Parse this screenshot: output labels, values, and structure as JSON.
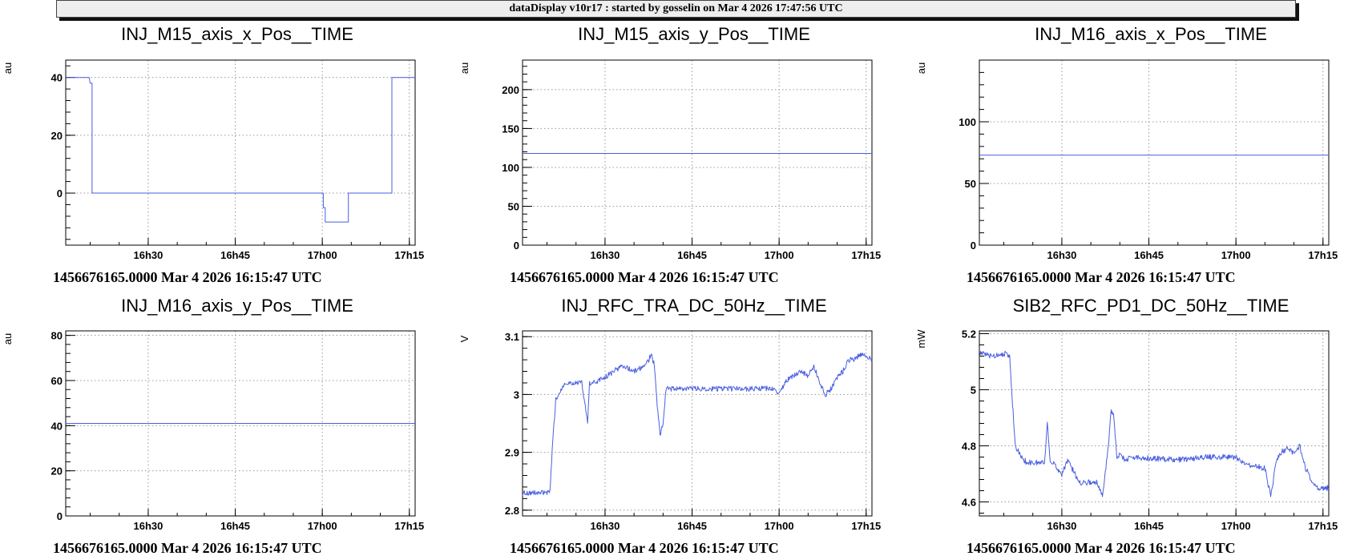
{
  "header": {
    "title": "dataDisplay v10r17 : started by gosselin on Mar  4 2026 17:47:56 UTC"
  },
  "chart_data": [
    {
      "type": "line",
      "title": "INJ_M15_axis_x_Pos__TIME",
      "ylabel": "au",
      "timestamp": "1456676165.0000 Mar 4 2026 16:15:47 UTC",
      "xlim": [
        "16:15:47",
        "17:16:00"
      ],
      "x_ticks": [
        "16h30",
        "16h45",
        "17h00",
        "17h15"
      ],
      "ylim": [
        -18,
        46
      ],
      "y_ticks": [
        0,
        20,
        40
      ],
      "y_labels": [
        "0",
        "20",
        "40"
      ],
      "grid": true,
      "series": [
        {
          "color": "#4a5fe0",
          "x": [
            "16:15:47",
            "16:19:50",
            "16:20:00",
            "16:20:20",
            "16:20:20",
            "17:00:10",
            "17:00:10",
            "17:00:30",
            "17:00:30",
            "17:04:30",
            "17:04:30",
            "17:12:00",
            "17:12:00",
            "17:16:00"
          ],
          "values": [
            40,
            40,
            38,
            38,
            0,
            0,
            -5,
            -5,
            -10,
            -10,
            0,
            0,
            40,
            40
          ]
        }
      ]
    },
    {
      "type": "line",
      "title": "INJ_M15_axis_y_Pos__TIME",
      "ylabel": "au",
      "timestamp": "1456676165.0000 Mar 4 2026 16:15:47 UTC",
      "xlim": [
        "16:15:47",
        "17:16:00"
      ],
      "x_ticks": [
        "16h30",
        "16h45",
        "17h00",
        "17h15"
      ],
      "ylim": [
        0,
        238
      ],
      "y_ticks": [
        0,
        50,
        100,
        150,
        200
      ],
      "y_labels": [
        "0",
        "50",
        "100",
        "150",
        "200"
      ],
      "grid": true,
      "series": [
        {
          "color": "#4a5fe0",
          "x": [
            "16:15:47",
            "17:16:00"
          ],
          "values": [
            118,
            118
          ]
        }
      ]
    },
    {
      "type": "line",
      "title": "INJ_M16_axis_x_Pos__TIME",
      "ylabel": "au",
      "timestamp": "1456676165.0000 Mar 4 2026 16:15:47 UTC",
      "xlim": [
        "16:15:47",
        "17:16:00"
      ],
      "x_ticks": [
        "16h30",
        "16h45",
        "17h00",
        "17h15"
      ],
      "ylim": [
        0,
        150
      ],
      "y_ticks": [
        0,
        50,
        100
      ],
      "y_labels": [
        "0",
        "50",
        "100"
      ],
      "grid": true,
      "series": [
        {
          "color": "#4a5fe0",
          "x": [
            "16:15:47",
            "17:16:00"
          ],
          "values": [
            73,
            73
          ]
        }
      ]
    },
    {
      "type": "line",
      "title": "INJ_M16_axis_y_Pos__TIME",
      "ylabel": "au",
      "timestamp": "1456676165.0000 Mar 4 2026 16:15:47 UTC",
      "xlim": [
        "16:15:47",
        "17:16:00"
      ],
      "x_ticks": [
        "16h30",
        "16h45",
        "17h00",
        "17h15"
      ],
      "ylim": [
        0,
        82
      ],
      "y_ticks": [
        0,
        20,
        40,
        60,
        80
      ],
      "y_labels": [
        "0",
        "20",
        "40",
        "60",
        "80"
      ],
      "grid": true,
      "series": [
        {
          "color": "#4a5fe0",
          "x": [
            "16:15:47",
            "17:16:00"
          ],
          "values": [
            41,
            41
          ]
        }
      ]
    },
    {
      "type": "line",
      "title": "INJ_RFC_TRA_DC_50Hz__TIME",
      "ylabel": "V",
      "timestamp": "1456676165.0000 Mar 4 2026 16:15:47 UTC",
      "xlim": [
        "16:15:47",
        "17:16:00"
      ],
      "x_ticks": [
        "16h30",
        "16h45",
        "17h00",
        "17h15"
      ],
      "ylim": [
        2.79,
        3.11
      ],
      "y_ticks": [
        2.8,
        2.9,
        3.0,
        3.1
      ],
      "y_labels": [
        "2.8",
        "2.9",
        "3",
        "3.1"
      ],
      "grid": true,
      "noise": 0.0045,
      "series": [
        {
          "color": "#4a5fe0",
          "x": [
            "16:15:47",
            "16:20:00",
            "16:20:30",
            "16:21:00",
            "16:21:30",
            "16:23:00",
            "16:26:00",
            "16:27:00",
            "16:27:20",
            "16:28:00",
            "16:30:00",
            "16:33:00",
            "16:35:00",
            "16:37:00",
            "16:38:00",
            "16:38:30",
            "16:39:00",
            "16:39:30",
            "16:40:00",
            "16:40:30",
            "16:41:00",
            "16:42:00",
            "16:50:00",
            "16:55:00",
            "16:59:00",
            "17:00:00",
            "17:01:00",
            "17:02:00",
            "17:04:00",
            "17:05:00",
            "17:06:00",
            "17:07:00",
            "17:08:00",
            "17:09:00",
            "17:10:00",
            "17:11:00",
            "17:12:00",
            "17:13:00",
            "17:14:00",
            "17:16:00"
          ],
          "values": [
            2.83,
            2.83,
            2.83,
            2.92,
            2.99,
            3.02,
            3.02,
            2.95,
            3.02,
            3.02,
            3.03,
            3.05,
            3.04,
            3.05,
            3.07,
            3.05,
            2.98,
            2.93,
            2.95,
            3.01,
            3.01,
            3.01,
            3.01,
            3.01,
            3.01,
            3.0,
            3.02,
            3.03,
            3.04,
            3.03,
            3.05,
            3.02,
            3.0,
            3.01,
            3.03,
            3.04,
            3.06,
            3.06,
            3.07,
            3.06
          ]
        }
      ]
    },
    {
      "type": "line",
      "title": "SIB2_RFC_PD1_DC_50Hz__TIME",
      "ylabel": "mW",
      "timestamp": "1456676165.0000 Mar 4 2026 16:15:47 UTC",
      "xlim": [
        "16:15:47",
        "17:16:00"
      ],
      "x_ticks": [
        "16h30",
        "16h45",
        "17h00",
        "17h15"
      ],
      "ylim": [
        4.55,
        5.21
      ],
      "y_ticks": [
        4.6,
        4.8,
        5.0,
        5.2
      ],
      "y_labels": [
        "4.6",
        "4.8",
        "5",
        "5.2"
      ],
      "grid": true,
      "noise": 0.01,
      "series": [
        {
          "color": "#4a5fe0",
          "x": [
            "16:15:47",
            "16:18:00",
            "16:20:00",
            "16:21:00",
            "16:21:30",
            "16:22:00",
            "16:23:00",
            "16:24:00",
            "16:26:00",
            "16:27:00",
            "16:27:30",
            "16:28:00",
            "16:30:00",
            "16:31:00",
            "16:33:00",
            "16:35:00",
            "16:36:00",
            "16:37:00",
            "16:38:00",
            "16:38:30",
            "16:39:00",
            "16:39:30",
            "16:40:00",
            "16:41:00",
            "16:42:00",
            "16:50:00",
            "16:55:00",
            "17:00:00",
            "17:01:00",
            "17:03:00",
            "17:05:00",
            "17:06:00",
            "17:07:00",
            "17:08:00",
            "17:09:00",
            "17:10:00",
            "17:11:00",
            "17:12:00",
            "17:13:00",
            "17:14:00",
            "17:16:00"
          ],
          "values": [
            5.13,
            5.12,
            5.13,
            5.12,
            4.95,
            4.8,
            4.76,
            4.74,
            4.74,
            4.74,
            4.88,
            4.75,
            4.7,
            4.75,
            4.67,
            4.67,
            4.67,
            4.62,
            4.8,
            4.93,
            4.9,
            4.75,
            4.77,
            4.75,
            4.76,
            4.75,
            4.76,
            4.76,
            4.74,
            4.73,
            4.72,
            4.62,
            4.75,
            4.78,
            4.79,
            4.77,
            4.8,
            4.72,
            4.68,
            4.65,
            4.65
          ]
        }
      ]
    }
  ]
}
